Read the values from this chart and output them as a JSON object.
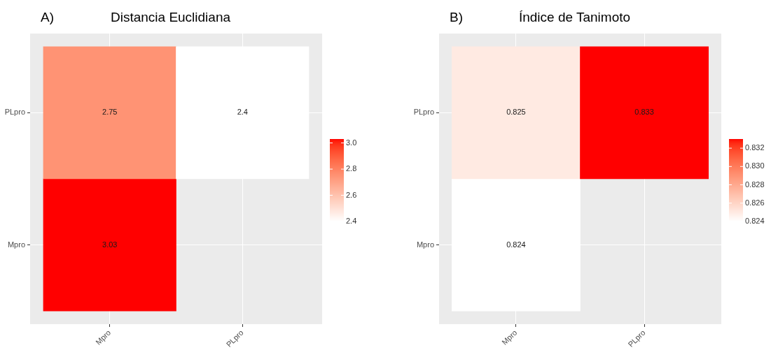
{
  "chart_data": [
    {
      "type": "heatmap",
      "title": "Distancia Euclidiana",
      "annotations": [
        "A)"
      ],
      "categories": [
        "Mpro",
        "PLpro"
      ],
      "y_categories": [
        "PLpro",
        "Mpro"
      ],
      "cells": [
        [
          2.75,
          2.4
        ],
        [
          3.03,
          null
        ]
      ],
      "clim": [
        2.4,
        3.03
      ],
      "cticks": [
        2.4,
        2.6,
        2.8,
        {
          "value": 3,
          "label": "3.0"
        }
      ],
      "data_labels": true,
      "grid": true
    },
    {
      "type": "heatmap",
      "title": "Índice de Tanimoto",
      "annotations": [
        "B)"
      ],
      "categories": [
        "Mpro",
        "PLpro"
      ],
      "y_categories": [
        "PLpro",
        "Mpro"
      ],
      "cells": [
        [
          0.825,
          0.833
        ],
        [
          0.824,
          null
        ]
      ],
      "clim": [
        0.824,
        0.833
      ],
      "cticks": [
        0.824,
        0.826,
        0.828,
        {
          "value": 0.83,
          "label": "0.830"
        },
        0.832
      ],
      "data_labels": true,
      "grid": true
    }
  ]
}
